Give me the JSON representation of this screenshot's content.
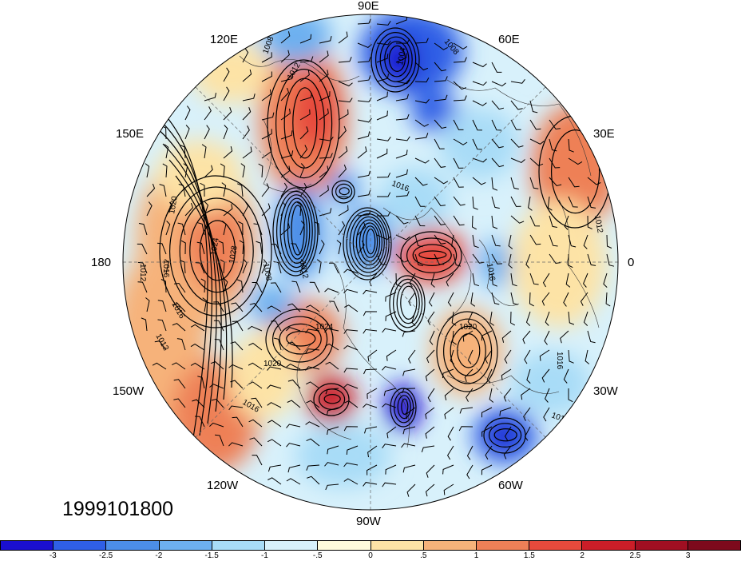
{
  "map": {
    "date_label": "1999101800",
    "lon_labels": [
      "90E",
      "60E",
      "30E",
      "0",
      "30W",
      "60W",
      "90W",
      "120W",
      "150W",
      "180",
      "150E",
      "120E"
    ],
    "contour_labels": [
      "1008",
      "1004",
      "1008",
      "1012",
      "1016",
      "1020",
      "1024",
      "1028",
      "1012",
      "1016",
      "1016",
      "1012",
      "1008",
      "1012",
      "1024",
      "1020",
      "1020",
      "1016",
      "1012",
      "1016",
      "1012",
      "1012",
      "1016"
    ]
  },
  "colorbar": {
    "labels": [
      "-3",
      "-2.5",
      "-2",
      "-1.5",
      "-1",
      "-.5",
      "0",
      ".5",
      "1",
      "1.5",
      "2",
      "2.5",
      "3"
    ],
    "colors": [
      "#1a0fd0",
      "#2f5fe6",
      "#4c8ee8",
      "#6db0f0",
      "#a8dcf7",
      "#d8f1fb",
      "#fffbdc",
      "#fde3a6",
      "#f6b27a",
      "#ee8057",
      "#e64a3c",
      "#cb1e28",
      "#a00f22"
    ]
  }
}
